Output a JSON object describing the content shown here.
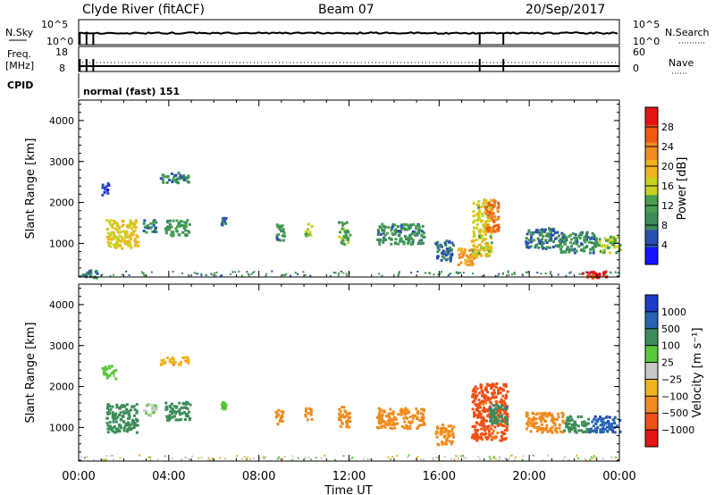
{
  "header": {
    "station": "Clyde River (fitACF)",
    "beam": "Beam 07",
    "date": "20/Sep/2017"
  },
  "strips": {
    "nsky": {
      "label": "N.Sky",
      "left_ticks": [
        "10^5",
        "10^0"
      ],
      "right_label": "N.Search",
      "right_ticks": [
        "10^5",
        "10^0"
      ]
    },
    "freq": {
      "label": "Freq.",
      "unit": "[MHz]",
      "left_ticks": [
        "18",
        "8"
      ],
      "right_label": "Nave",
      "right_ticks": [
        "60",
        "0"
      ]
    },
    "cpid": {
      "label": "CPID",
      "value": "normal (fast) 151"
    }
  },
  "colors": {
    "power": [
      "#1414ff",
      "#2850b4",
      "#3c8c5a",
      "#46a050",
      "#c8d21e",
      "#f0b41e",
      "#f08c1e",
      "#f05a14",
      "#e61414"
    ],
    "velocity": [
      "#e61414",
      "#f05014",
      "#f08c1e",
      "#f0b41e",
      "#c8c8c8",
      "#5ac83c",
      "#3c8c5a",
      "#2864b4",
      "#1e3cc8"
    ]
  },
  "chart_data": [
    {
      "type": "heatmap",
      "name": "power",
      "xlabel": "",
      "ylabel": "Slant Range [km]",
      "yticks": [
        "1000",
        "2000",
        "3000",
        "4000"
      ],
      "xticks": [
        "00:00",
        "04:00",
        "08:00",
        "12:00",
        "16:00",
        "20:00",
        "00:00"
      ],
      "ylim": [
        180,
        4500
      ],
      "xlim_hours": [
        0,
        24
      ],
      "colorbar": {
        "label": "Power [dB]",
        "ticks": [
          "4",
          "8",
          "12",
          "16",
          "20",
          "24",
          "28"
        ],
        "range": [
          0,
          32
        ]
      },
      "features": [
        {
          "t": [
            0.2,
            0.8
          ],
          "r": [
            180,
            400
          ],
          "v": 6
        },
        {
          "t": [
            1.0,
            1.3
          ],
          "r": [
            2200,
            2500
          ],
          "v": 5
        },
        {
          "t": [
            1.2,
            2.6
          ],
          "r": [
            900,
            1600
          ],
          "v": 18
        },
        {
          "t": [
            2.8,
            3.4
          ],
          "r": [
            1300,
            1600
          ],
          "v": 8
        },
        {
          "t": [
            3.6,
            4.9
          ],
          "r": [
            2500,
            2750
          ],
          "v": 8
        },
        {
          "t": [
            3.8,
            4.9
          ],
          "r": [
            1200,
            1600
          ],
          "v": 10
        },
        {
          "t": [
            6.3,
            6.5
          ],
          "r": [
            1450,
            1650
          ],
          "v": 6
        },
        {
          "t": [
            8.7,
            9.1
          ],
          "r": [
            1100,
            1500
          ],
          "v": 9
        },
        {
          "t": [
            10.0,
            10.3
          ],
          "r": [
            1200,
            1500
          ],
          "v": 14
        },
        {
          "t": [
            11.5,
            12.0
          ],
          "r": [
            1000,
            1550
          ],
          "v": 12
        },
        {
          "t": [
            13.2,
            15.3
          ],
          "r": [
            1000,
            1500
          ],
          "v": 9
        },
        {
          "t": [
            15.8,
            16.6
          ],
          "r": [
            600,
            1100
          ],
          "v": 6
        },
        {
          "t": [
            16.8,
            17.6
          ],
          "r": [
            500,
            900
          ],
          "v": 22
        },
        {
          "t": [
            17.4,
            18.3
          ],
          "r": [
            700,
            2100
          ],
          "v": 17
        },
        {
          "t": [
            18.0,
            18.6
          ],
          "r": [
            1300,
            2100
          ],
          "v": 26
        },
        {
          "t": [
            19.8,
            21.2
          ],
          "r": [
            900,
            1400
          ],
          "v": 7
        },
        {
          "t": [
            21.2,
            23.0
          ],
          "r": [
            800,
            1300
          ],
          "v": 8
        },
        {
          "t": [
            23.0,
            24.0
          ],
          "r": [
            800,
            1200
          ],
          "v": 14
        },
        {
          "t": [
            22.3,
            23.4
          ],
          "r": [
            180,
            350
          ],
          "v": 30
        }
      ]
    },
    {
      "type": "heatmap",
      "name": "velocity",
      "xlabel": "Time UT",
      "ylabel": "Slant Range [km]",
      "yticks": [
        "1000",
        "2000",
        "3000",
        "4000"
      ],
      "xticks": [
        "00:00",
        "04:00",
        "08:00",
        "12:00",
        "16:00",
        "20:00",
        "00:00"
      ],
      "ylim": [
        180,
        4500
      ],
      "xlim_hours": [
        0,
        24
      ],
      "colorbar": {
        "label": "Velocity [m s⁻¹]",
        "ticks": [
          "1000",
          "500",
          "100",
          "25",
          "−25",
          "−100",
          "−500",
          "−1000"
        ],
        "levels": [
          -1000,
          -500,
          -100,
          -25,
          25,
          100,
          500,
          1000
        ]
      },
      "features": [
        {
          "t": [
            1.0,
            1.6
          ],
          "r": [
            2200,
            2550
          ],
          "v": 40
        },
        {
          "t": [
            1.2,
            2.6
          ],
          "r": [
            900,
            1600
          ],
          "v": 150
        },
        {
          "t": [
            2.8,
            3.4
          ],
          "r": [
            1300,
            1600
          ],
          "v": 20
        },
        {
          "t": [
            3.6,
            4.9
          ],
          "r": [
            2550,
            2750
          ],
          "v": -80
        },
        {
          "t": [
            3.8,
            4.9
          ],
          "r": [
            1200,
            1650
          ],
          "v": 150
        },
        {
          "t": [
            6.3,
            6.5
          ],
          "r": [
            1450,
            1650
          ],
          "v": 80
        },
        {
          "t": [
            8.7,
            9.1
          ],
          "r": [
            1100,
            1500
          ],
          "v": -200
        },
        {
          "t": [
            10.0,
            10.3
          ],
          "r": [
            1200,
            1500
          ],
          "v": -200
        },
        {
          "t": [
            11.5,
            12.0
          ],
          "r": [
            1000,
            1550
          ],
          "v": -300
        },
        {
          "t": [
            13.2,
            15.3
          ],
          "r": [
            1000,
            1500
          ],
          "v": -300
        },
        {
          "t": [
            15.8,
            16.6
          ],
          "r": [
            600,
            1100
          ],
          "v": -300
        },
        {
          "t": [
            17.4,
            19.0
          ],
          "r": [
            700,
            2100
          ],
          "v": -700
        },
        {
          "t": [
            18.2,
            19.0
          ],
          "r": [
            1100,
            1600
          ],
          "v": 400
        },
        {
          "t": [
            19.8,
            21.5
          ],
          "r": [
            900,
            1400
          ],
          "v": -200
        },
        {
          "t": [
            21.5,
            22.6
          ],
          "r": [
            900,
            1300
          ],
          "v": 300
        },
        {
          "t": [
            22.6,
            24.0
          ],
          "r": [
            900,
            1300
          ],
          "v": 800
        }
      ]
    }
  ]
}
